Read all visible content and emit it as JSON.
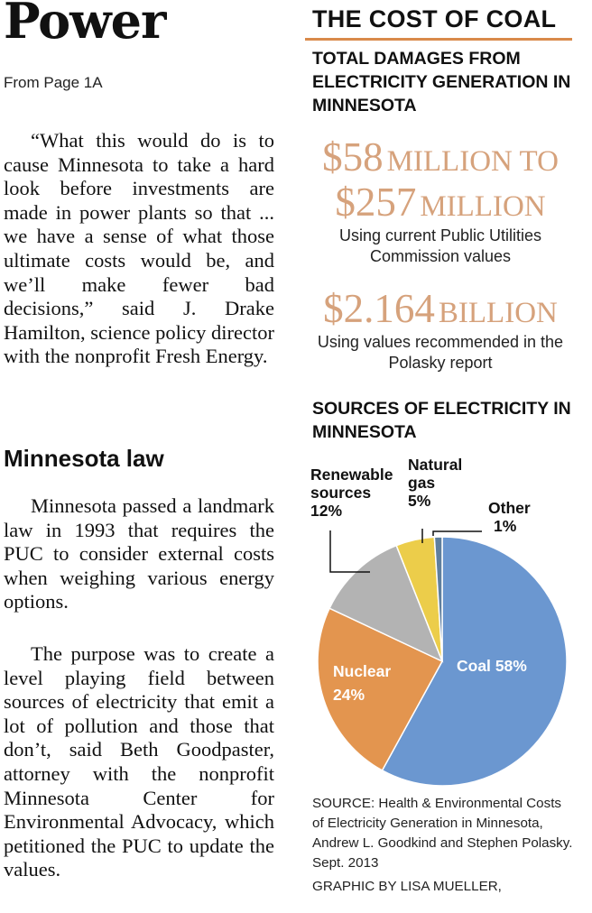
{
  "article": {
    "headline": "Power",
    "jump": "From Page 1A",
    "para1": "“What this would do is to cause Minnesota to take a hard look before investments are made in power plants so that ... we have a sense of what those ultimate costs would be, and we’ll make fewer bad decisions,” said J. Drake Hamilton, science policy director with the nonprofit Fresh Energy.",
    "subhead": "Minnesota law",
    "para2": "Minnesota passed a landmark law in 1993 that requires the PUC to consider external costs when weighing various energy options.",
    "para3": "The purpose was to create a level playing field between sources of electricity that emit a lot of pollution and those that don’t, said Beth Goodpaster, attorney with the nonprofit Minnesota Center for Environmental Advocacy, which petitioned the PUC to update the values."
  },
  "sidebar": {
    "title": "THE COST OF COAL",
    "subtitle": "TOTAL DAMAGES FROM ELECTRICITY GENERATION IN MINNESOTA",
    "range_big1": "$58",
    "range_small1": "MILLION TO",
    "range_big2": "$257",
    "range_small2": "MILLION",
    "caption1": "Using current Public Utilities Commission values",
    "value_big": "$2.164",
    "value_small": "BILLION",
    "caption2": "Using values recommended in the Polasky report",
    "chart_title": "SOURCES OF ELECTRICITY IN MINNESOTA",
    "source": "SOURCE: Health & Environmental Costs of Electricity Generation in Minnesota, Andrew L. Goodkind and Stephen Polasky. Sept. 2013",
    "credit": "GRAPHIC BY LISA MUELLER,"
  },
  "chart_data": {
    "type": "pie",
    "title": "SOURCES OF ELECTRICITY IN MINNESOTA",
    "slices": [
      {
        "label": "Coal",
        "value_label": "58%",
        "value": 58,
        "color": "#6b97d0"
      },
      {
        "label": "Nuclear",
        "value_label": "24%",
        "value": 24,
        "color": "#e3954f"
      },
      {
        "label": "Renewable sources",
        "value_label": "12%",
        "value": 12,
        "color": "#b3b3b3"
      },
      {
        "label": "Natural gas",
        "value_label": "5%",
        "value": 5,
        "color": "#eccd4a"
      },
      {
        "label": "Other",
        "value_label": "1%",
        "value": 1,
        "color": "#5f7f9e"
      }
    ]
  }
}
